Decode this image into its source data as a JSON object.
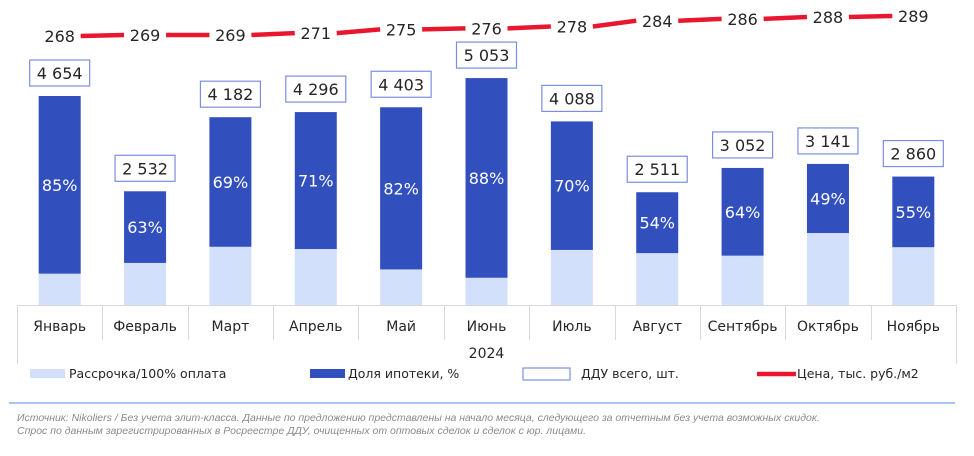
{
  "chart_data": {
    "type": "bar",
    "title": "",
    "xlabel": "2024",
    "ylabel": "",
    "categories": [
      "Январь",
      "Февраль",
      "Март",
      "Апрель",
      "Май",
      "Июнь",
      "Июль",
      "Август",
      "Сентябрь",
      "Октябрь",
      "Ноябрь"
    ],
    "series": [
      {
        "name": "ДДУ всего, шт.",
        "kind": "total-label",
        "values": [
          4654,
          2532,
          4182,
          4296,
          4403,
          5053,
          4088,
          2511,
          3052,
          3141,
          2860
        ],
        "labels": [
          "4 654",
          "2 532",
          "4 182",
          "4 296",
          "4 403",
          "5 053",
          "4 088",
          "2 511",
          "3 052",
          "3 141",
          "2 860"
        ]
      },
      {
        "name": "Доля ипотеки, %",
        "kind": "stacked-bar-top",
        "values": [
          85,
          63,
          69,
          71,
          82,
          88,
          70,
          54,
          64,
          49,
          55
        ],
        "labels": [
          "85%",
          "63%",
          "69%",
          "71%",
          "82%",
          "88%",
          "70%",
          "54%",
          "64%",
          "49%",
          "55%"
        ]
      },
      {
        "name": "Рассрочка/100% оплата",
        "kind": "stacked-bar-bottom",
        "values": [
          15,
          37,
          31,
          29,
          18,
          12,
          30,
          46,
          36,
          51,
          45
        ]
      },
      {
        "name": "Цена, тыс. руб./м2",
        "kind": "line",
        "values": [
          268,
          269,
          269,
          271,
          275,
          276,
          278,
          284,
          286,
          288,
          289
        ],
        "labels": [
          "268",
          "269",
          "269",
          "271",
          "275",
          "276",
          "278",
          "284",
          "286",
          "288",
          "289"
        ]
      }
    ],
    "ylim": [
      0,
      5500
    ],
    "grid": false,
    "legend": "bottom",
    "colors": {
      "mortgage": "#314fbd",
      "installment": "#d3e0fb",
      "total_box": "#7b8fe0",
      "price_line": "#e8172f",
      "axis": "#d9d9d9"
    }
  },
  "legend": [
    {
      "label": "Рассрочка/100% оплата",
      "swatch": "fill-light"
    },
    {
      "label": "Доля ипотеки, %",
      "swatch": "fill-dark"
    },
    {
      "label": "ДДУ всего, шт.",
      "swatch": "outline-box"
    },
    {
      "label": "Цена, тыс. руб./м2",
      "swatch": "red-line"
    }
  ],
  "footnote": {
    "line1": "Источник: Nikoliers / Без учета элит-класса. Данные по предложению представлены на начало месяца, следующего за отчетным без учета возможных скидок.",
    "line2": "Спрос по данным зарегистрированных в Росреестре ДДУ, очищенных от оптовых сделок и сделок с юр. лицами."
  }
}
